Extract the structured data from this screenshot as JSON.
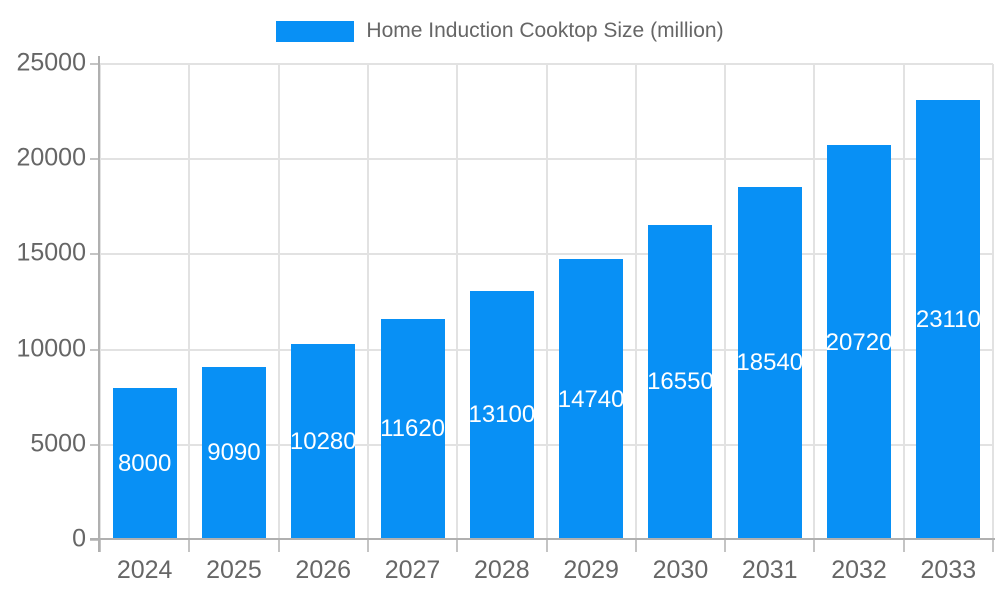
{
  "chart_data": {
    "type": "bar",
    "title": "Home Induction Cooktop Size (million)",
    "categories": [
      "2024",
      "2025",
      "2026",
      "2027",
      "2028",
      "2029",
      "2030",
      "2031",
      "2032",
      "2033"
    ],
    "values": [
      8000,
      9090,
      10280,
      11620,
      13100,
      14740,
      16550,
      18540,
      20720,
      23110
    ],
    "xlabel": "",
    "ylabel": "",
    "ylim": [
      0,
      25000
    ],
    "yticks": [
      0,
      5000,
      10000,
      15000,
      20000,
      25000
    ],
    "grid": "on",
    "legend_position": "top-center",
    "colors": {
      "bar": "#0890f5",
      "axis_text": "#666666",
      "legend_text": "#666666",
      "gridline": "#e2e2e2",
      "axis_line": "#b0b0b0",
      "tick": "#c4c4c4",
      "value_label": "#ffffff",
      "background": "#ffffff"
    }
  }
}
